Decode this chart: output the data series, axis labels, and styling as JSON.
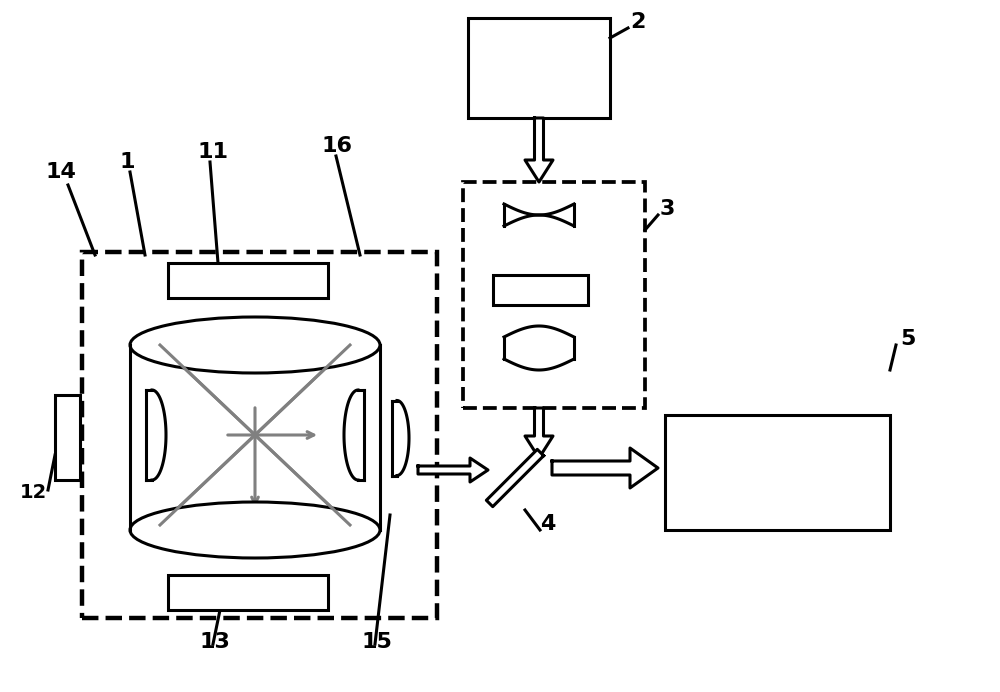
{
  "bg_color": "#ffffff",
  "line_color": "#000000",
  "fig_width": 10.0,
  "fig_height": 6.92,
  "dpi": 100
}
